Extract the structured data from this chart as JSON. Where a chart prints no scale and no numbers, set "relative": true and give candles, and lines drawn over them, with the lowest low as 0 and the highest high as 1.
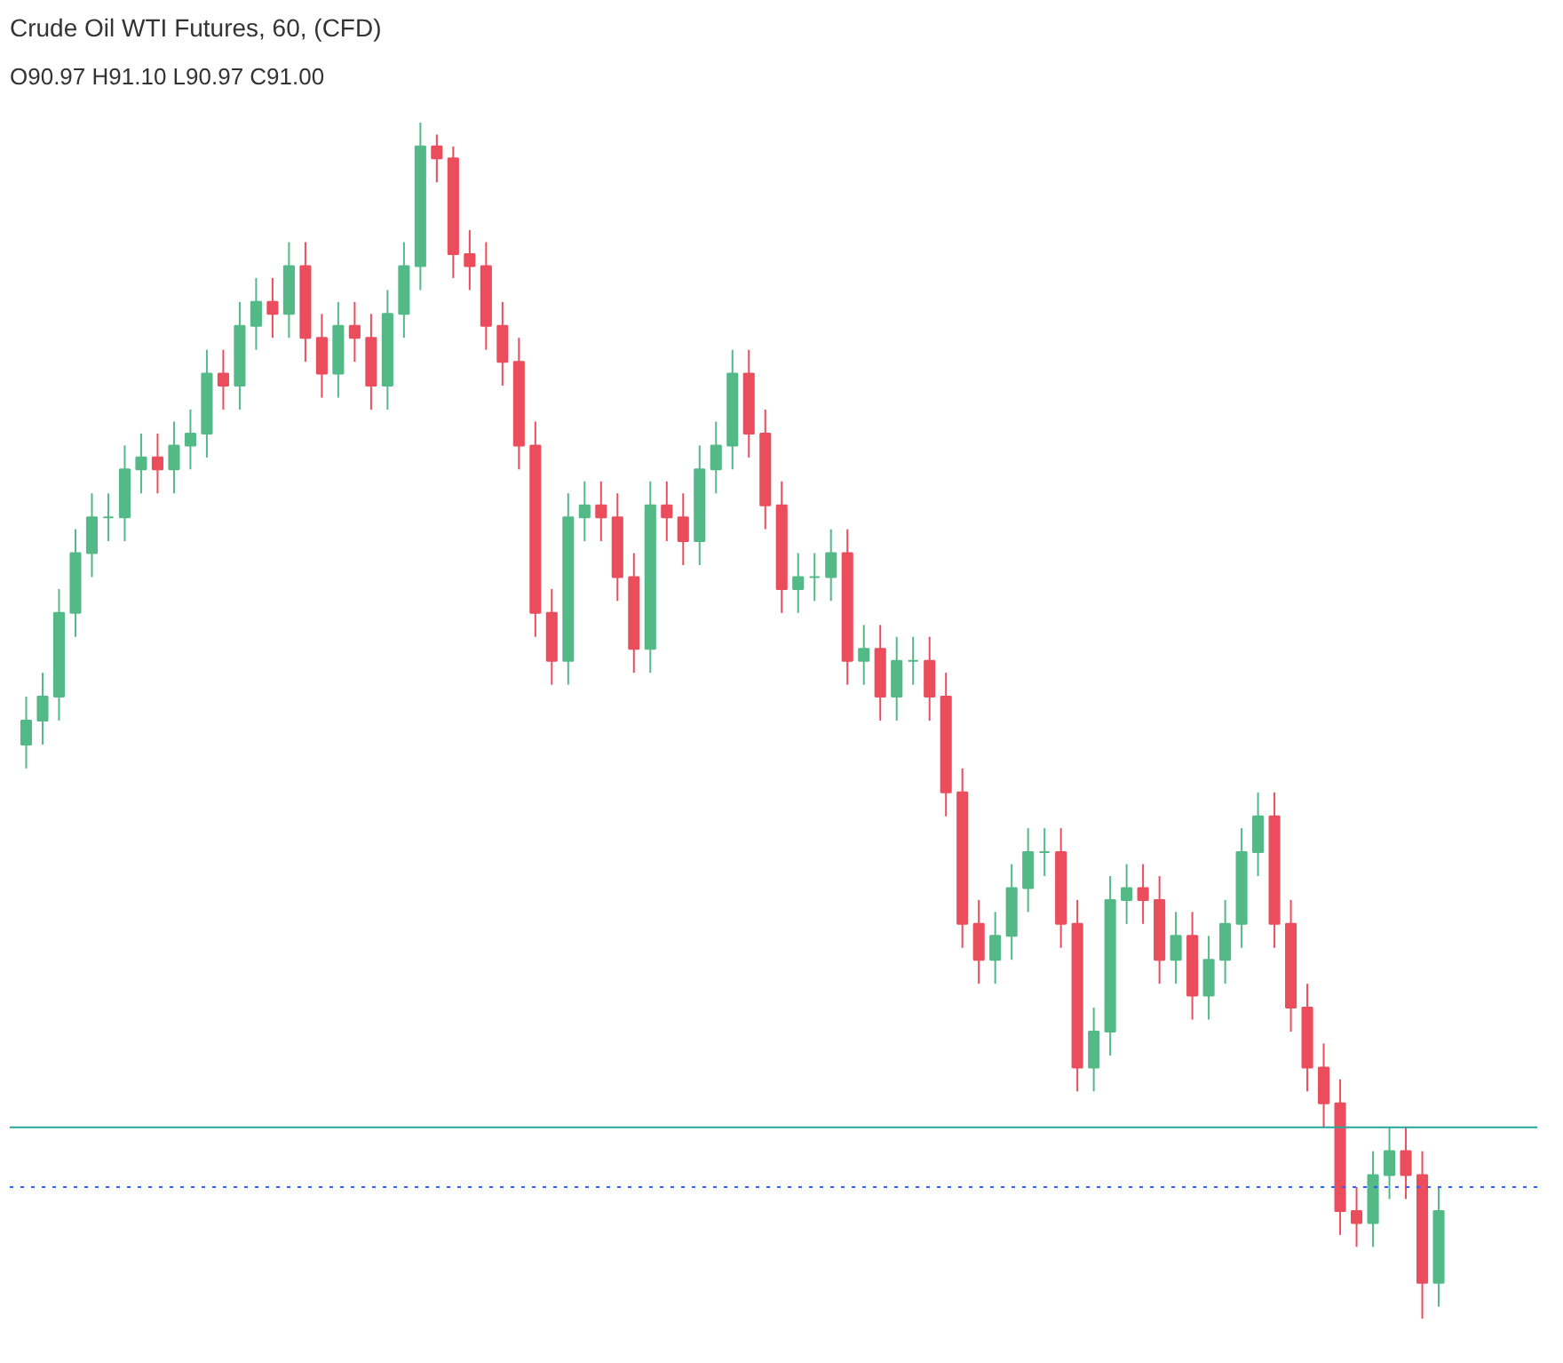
{
  "chart_data": {
    "type": "candlestick",
    "title": "Crude Oil WTI Futures, 60, (CFD)",
    "annotations": [
      "O90.97 H91.10 L90.97 C91.00"
    ],
    "relative": true,
    "tick_labels": false,
    "grid": false,
    "categories": [
      null,
      null,
      null,
      null,
      null,
      null,
      null,
      null,
      null,
      null,
      null,
      null,
      null,
      null,
      null,
      null,
      null,
      null,
      null,
      null,
      null,
      null,
      null,
      null,
      null,
      null,
      null,
      null,
      null,
      null,
      null,
      null,
      null,
      null,
      null,
      null,
      null,
      null,
      null,
      null,
      null,
      null,
      null,
      null,
      null,
      null,
      null,
      null,
      null,
      null,
      null,
      null,
      null,
      null,
      null,
      null,
      null,
      null,
      null,
      null,
      null,
      null,
      null,
      null,
      null,
      null,
      null,
      null,
      null,
      null,
      null,
      null,
      null,
      null,
      null,
      null,
      null,
      null,
      null,
      null,
      null,
      null,
      null,
      null,
      null,
      null,
      null
    ],
    "ohlc": [
      [
        0.48,
        0.52,
        0.46,
        0.5
      ],
      [
        0.5,
        0.54,
        0.48,
        0.52
      ],
      [
        0.52,
        0.61,
        0.5,
        0.59
      ],
      [
        0.59,
        0.66,
        0.57,
        0.64
      ],
      [
        0.64,
        0.69,
        0.62,
        0.67
      ],
      [
        0.67,
        0.69,
        0.65,
        0.67
      ],
      [
        0.67,
        0.73,
        0.65,
        0.71
      ],
      [
        0.71,
        0.74,
        0.69,
        0.72
      ],
      [
        0.72,
        0.74,
        0.69,
        0.71
      ],
      [
        0.71,
        0.75,
        0.69,
        0.73
      ],
      [
        0.73,
        0.76,
        0.71,
        0.74
      ],
      [
        0.74,
        0.81,
        0.72,
        0.79
      ],
      [
        0.79,
        0.81,
        0.76,
        0.78
      ],
      [
        0.78,
        0.85,
        0.76,
        0.83
      ],
      [
        0.83,
        0.87,
        0.81,
        0.85
      ],
      [
        0.85,
        0.87,
        0.82,
        0.84
      ],
      [
        0.84,
        0.9,
        0.82,
        0.88
      ],
      [
        0.88,
        0.9,
        0.8,
        0.82
      ],
      [
        0.82,
        0.84,
        0.77,
        0.79
      ],
      [
        0.79,
        0.85,
        0.77,
        0.83
      ],
      [
        0.83,
        0.85,
        0.8,
        0.82
      ],
      [
        0.82,
        0.84,
        0.76,
        0.78
      ],
      [
        0.78,
        0.86,
        0.76,
        0.84
      ],
      [
        0.84,
        0.9,
        0.82,
        0.88
      ],
      [
        0.88,
        1.0,
        0.86,
        0.98
      ],
      [
        0.98,
        0.99,
        0.95,
        0.97
      ],
      [
        0.97,
        0.98,
        0.87,
        0.89
      ],
      [
        0.89,
        0.91,
        0.86,
        0.88
      ],
      [
        0.88,
        0.9,
        0.81,
        0.83
      ],
      [
        0.83,
        0.85,
        0.78,
        0.8
      ],
      [
        0.8,
        0.82,
        0.71,
        0.73
      ],
      [
        0.73,
        0.75,
        0.57,
        0.59
      ],
      [
        0.59,
        0.61,
        0.53,
        0.55
      ],
      [
        0.55,
        0.69,
        0.53,
        0.67
      ],
      [
        0.67,
        0.7,
        0.65,
        0.68
      ],
      [
        0.68,
        0.7,
        0.65,
        0.67
      ],
      [
        0.67,
        0.69,
        0.6,
        0.62
      ],
      [
        0.62,
        0.64,
        0.54,
        0.56
      ],
      [
        0.56,
        0.7,
        0.54,
        0.68
      ],
      [
        0.68,
        0.7,
        0.65,
        0.67
      ],
      [
        0.67,
        0.69,
        0.63,
        0.65
      ],
      [
        0.65,
        0.73,
        0.63,
        0.71
      ],
      [
        0.71,
        0.75,
        0.69,
        0.73
      ],
      [
        0.73,
        0.81,
        0.71,
        0.79
      ],
      [
        0.79,
        0.81,
        0.72,
        0.74
      ],
      [
        0.74,
        0.76,
        0.66,
        0.68
      ],
      [
        0.68,
        0.7,
        0.59,
        0.61
      ],
      [
        0.61,
        0.64,
        0.59,
        0.62
      ],
      [
        0.62,
        0.64,
        0.6,
        0.62
      ],
      [
        0.62,
        0.66,
        0.6,
        0.64
      ],
      [
        0.64,
        0.66,
        0.53,
        0.55
      ],
      [
        0.55,
        0.58,
        0.53,
        0.56
      ],
      [
        0.56,
        0.58,
        0.5,
        0.52
      ],
      [
        0.52,
        0.57,
        0.5,
        0.55
      ],
      [
        0.55,
        0.57,
        0.53,
        0.55
      ],
      [
        0.55,
        0.57,
        0.5,
        0.52
      ],
      [
        0.52,
        0.54,
        0.42,
        0.44
      ],
      [
        0.44,
        0.46,
        0.31,
        0.33
      ],
      [
        0.33,
        0.35,
        0.28,
        0.3
      ],
      [
        0.3,
        0.34,
        0.28,
        0.32
      ],
      [
        0.32,
        0.38,
        0.3,
        0.36
      ],
      [
        0.36,
        0.41,
        0.34,
        0.39
      ],
      [
        0.39,
        0.41,
        0.37,
        0.39
      ],
      [
        0.39,
        0.41,
        0.31,
        0.33
      ],
      [
        0.33,
        0.35,
        0.19,
        0.21
      ],
      [
        0.21,
        0.26,
        0.19,
        0.24
      ],
      [
        0.24,
        0.37,
        0.22,
        0.35
      ],
      [
        0.35,
        0.38,
        0.33,
        0.36
      ],
      [
        0.36,
        0.38,
        0.33,
        0.35
      ],
      [
        0.35,
        0.37,
        0.28,
        0.3
      ],
      [
        0.3,
        0.34,
        0.28,
        0.32
      ],
      [
        0.32,
        0.34,
        0.25,
        0.27
      ],
      [
        0.27,
        0.32,
        0.25,
        0.3
      ],
      [
        0.3,
        0.35,
        0.28,
        0.33
      ],
      [
        0.33,
        0.41,
        0.31,
        0.39
      ],
      [
        0.39,
        0.44,
        0.37,
        0.42
      ],
      [
        0.42,
        0.44,
        0.31,
        0.33
      ],
      [
        0.33,
        0.35,
        0.24,
        0.26
      ],
      [
        0.26,
        0.28,
        0.19,
        0.21
      ],
      [
        0.21,
        0.23,
        0.16,
        0.18
      ],
      [
        0.18,
        0.2,
        0.07,
        0.09
      ],
      [
        0.09,
        0.11,
        0.06,
        0.08
      ],
      [
        0.08,
        0.14,
        0.06,
        0.12
      ],
      [
        0.12,
        0.16,
        0.1,
        0.14
      ],
      [
        0.14,
        0.16,
        0.1,
        0.12
      ],
      [
        0.12,
        0.14,
        0.0,
        0.03
      ],
      [
        0.03,
        0.11,
        0.01,
        0.09
      ]
    ],
    "ref_lines": [
      {
        "axis": "y",
        "value": 0.16,
        "color": "#26a69a",
        "line_style": "solid"
      },
      {
        "axis": "y",
        "value": 0.11,
        "color": "#2962ff",
        "line_style": "dotted"
      }
    ]
  }
}
